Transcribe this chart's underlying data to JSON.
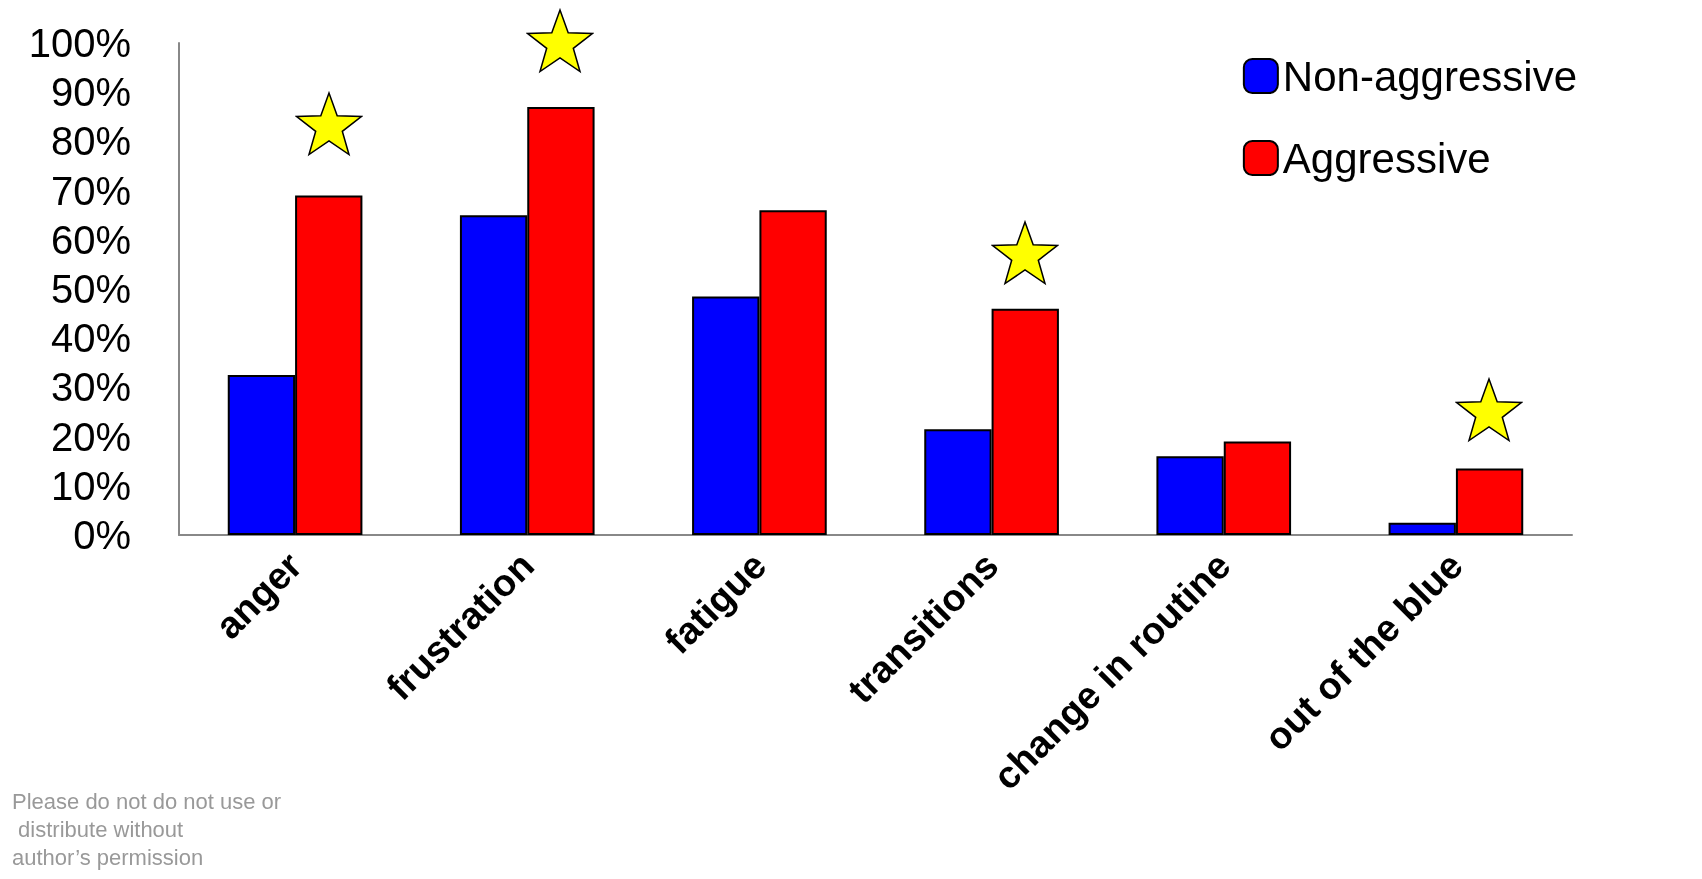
{
  "chart_data": {
    "type": "bar",
    "categories": [
      "anger",
      "frustration",
      "fatigue",
      "transitions",
      "change in routine",
      "out of the blue"
    ],
    "series": [
      {
        "name": "Non-aggressive",
        "color": "#0000ff",
        "values": [
          32.5,
          65,
          48.5,
          21.5,
          16,
          2.5
        ]
      },
      {
        "name": "Aggressive",
        "color": "#ff0000",
        "values": [
          69,
          87,
          66,
          46,
          19,
          13.5
        ]
      }
    ],
    "ylim": [
      0,
      100
    ],
    "yticks": [
      {
        "value": 0,
        "label": "0%"
      },
      {
        "value": 10,
        "label": "10%"
      },
      {
        "value": 20,
        "label": "20%"
      },
      {
        "value": 30,
        "label": "30%"
      },
      {
        "value": 40,
        "label": "40%"
      },
      {
        "value": 50,
        "label": "50%"
      },
      {
        "value": 60,
        "label": "60%"
      },
      {
        "value": 70,
        "label": "70%"
      },
      {
        "value": 80,
        "label": "80%"
      },
      {
        "value": 90,
        "label": "90%"
      },
      {
        "value": 100,
        "label": "100%"
      }
    ],
    "grid": false,
    "legend": "top right",
    "annotations": [
      "Please do not do not use or distribute without author’s permission"
    ]
  }
}
